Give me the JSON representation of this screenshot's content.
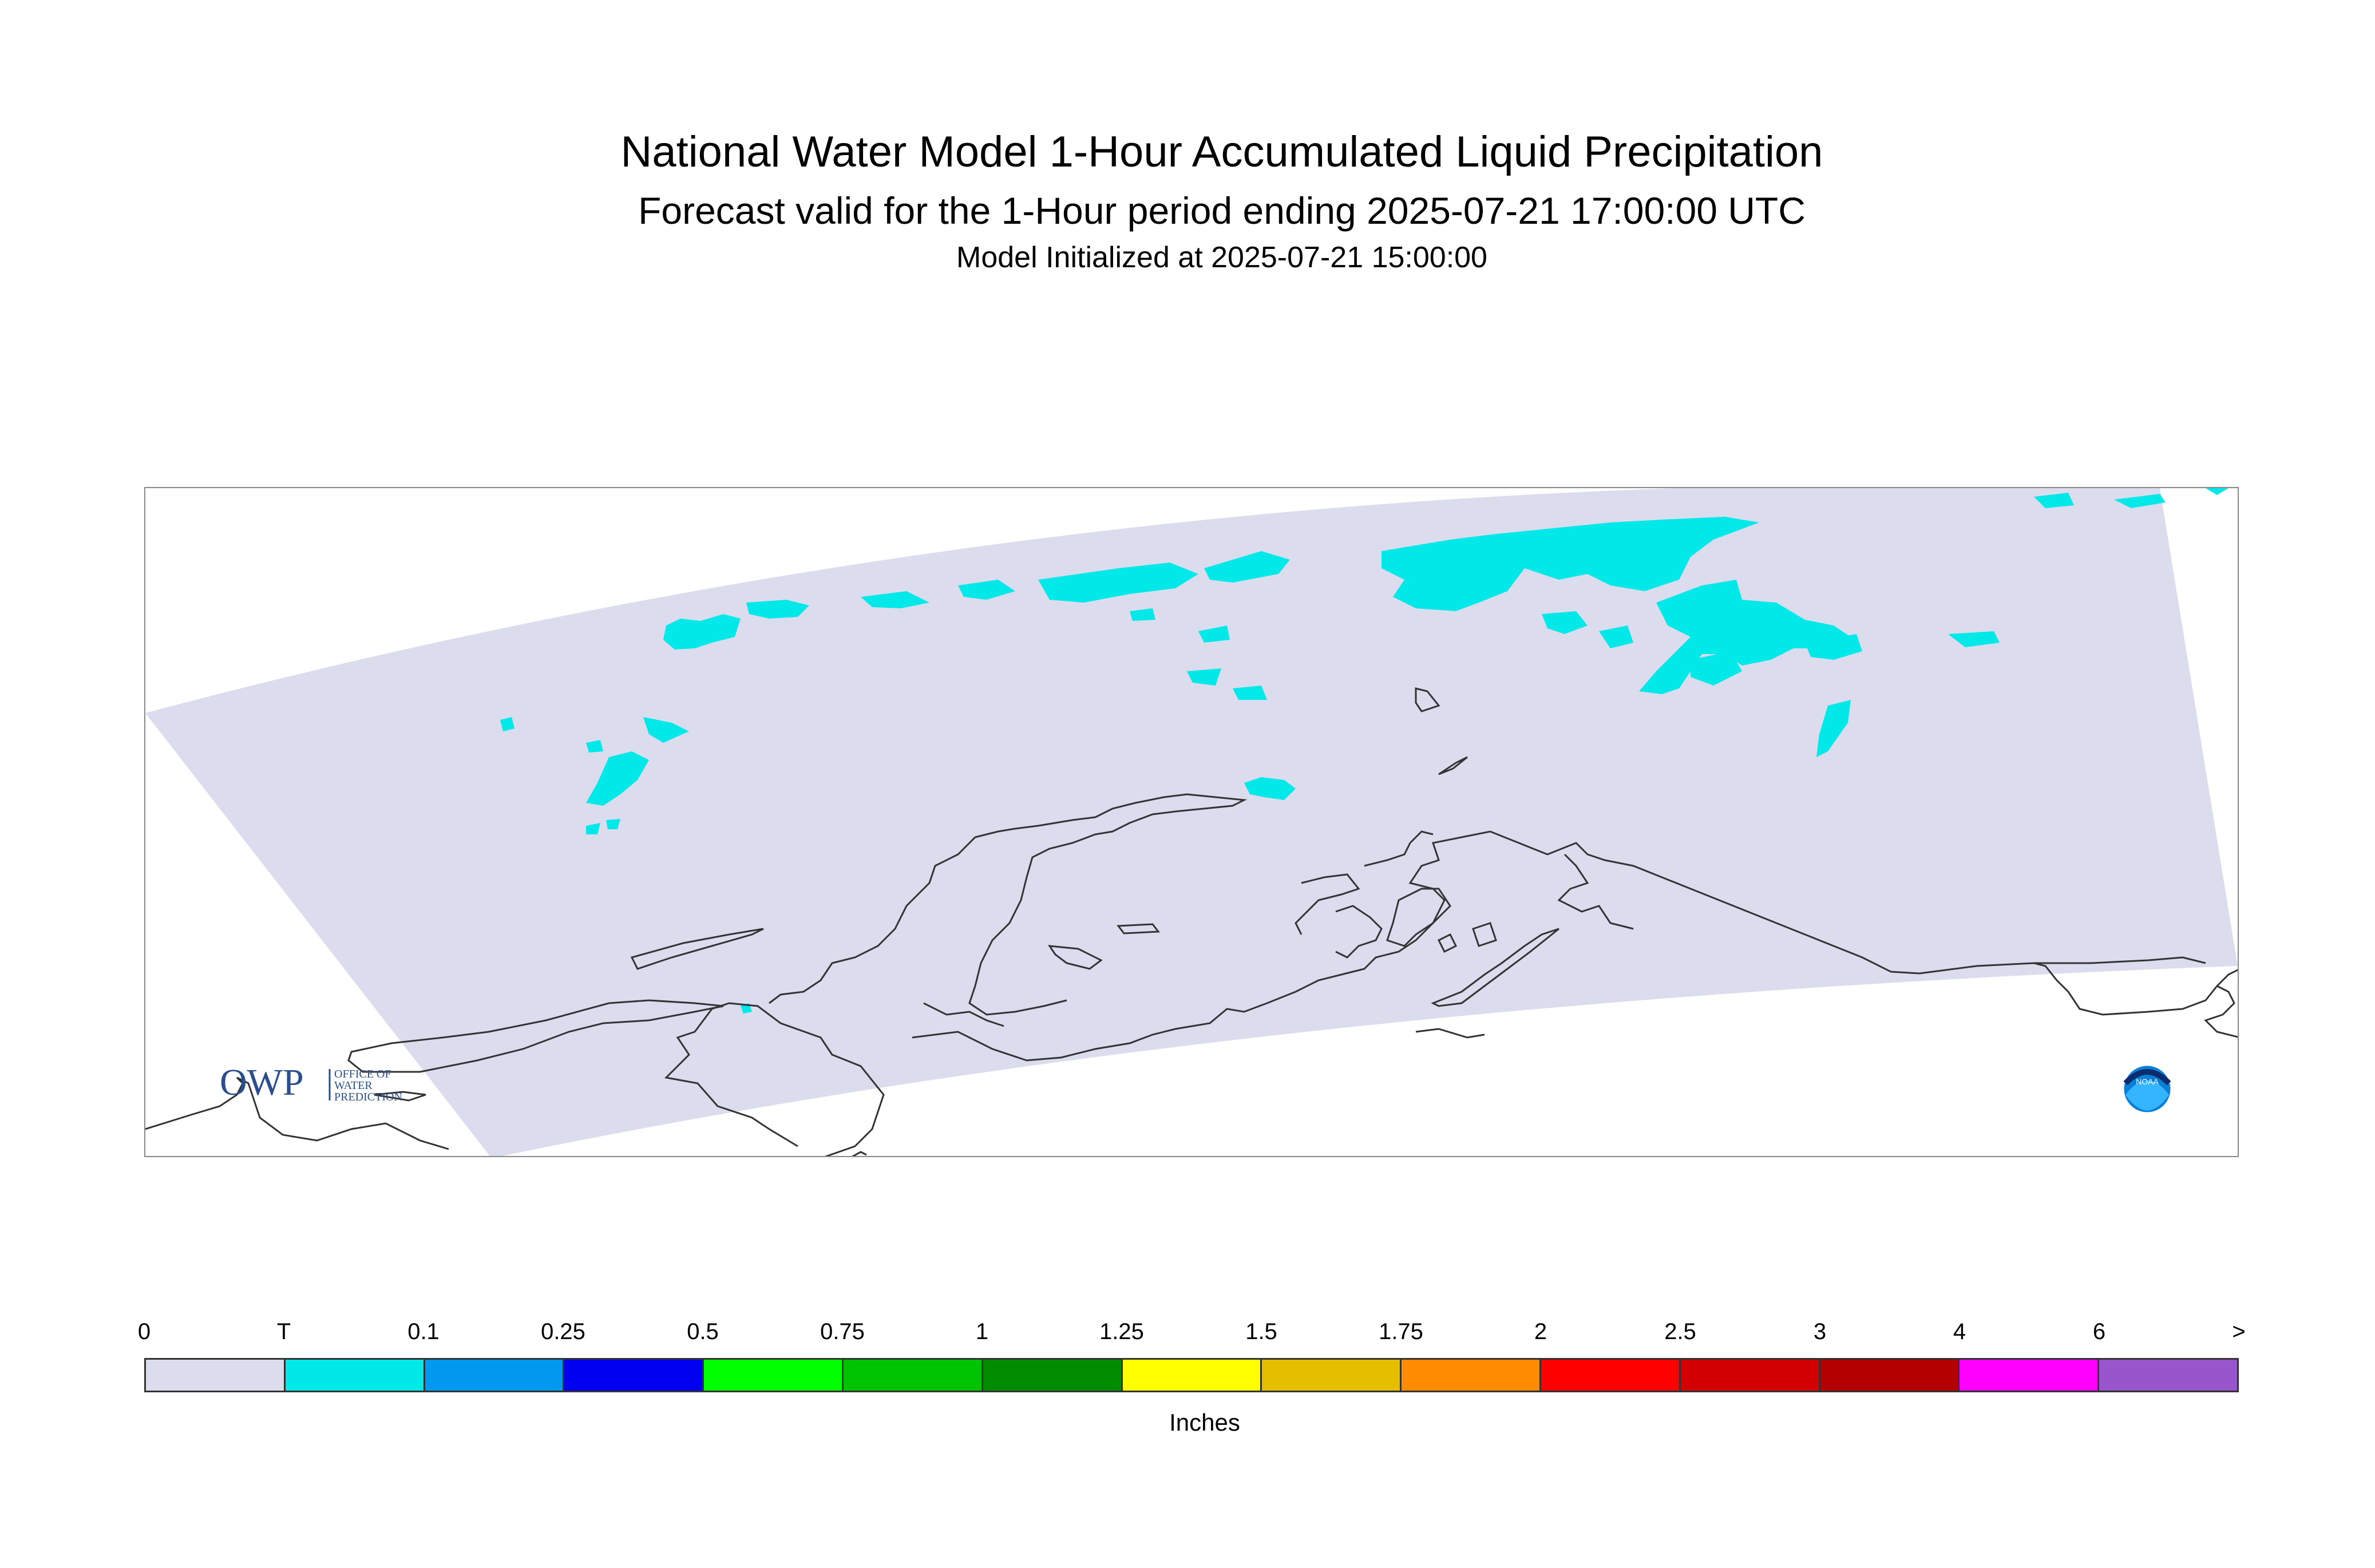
{
  "title": "National Water Model 1-Hour Accumulated Liquid Precipitation",
  "subtitle": "Forecast valid for the 1-Hour period ending 2025-07-21 17:00:00 UTC",
  "init_text": "Model Initialized at 2025-07-21 15:00:00",
  "logo_owp": {
    "mark": "OWP",
    "line1": "OFFICE OF",
    "line2": "WATER",
    "line3": "PREDICTION"
  },
  "logo_noaa": "NOAA",
  "legend": {
    "units": "Inches",
    "ticks": [
      "0",
      "T",
      "0.1",
      "0.25",
      "0.5",
      "0.75",
      "1",
      "1.25",
      "1.5",
      "1.75",
      "2",
      "2.5",
      "3",
      "4",
      "6",
      ">"
    ],
    "colors": [
      "#dcdcef",
      "#00e8e8",
      "#0099f0",
      "#0000f0",
      "#00ff00",
      "#00c300",
      "#008c00",
      "#ffff00",
      "#e6be00",
      "#ff8c00",
      "#ff0000",
      "#d20000",
      "#b40000",
      "#ff00ff",
      "#9955cc"
    ]
  },
  "colors": {
    "domain_fill": "#dcdcef",
    "trace_precip": "#00e8e8",
    "coastline": "#333333"
  }
}
